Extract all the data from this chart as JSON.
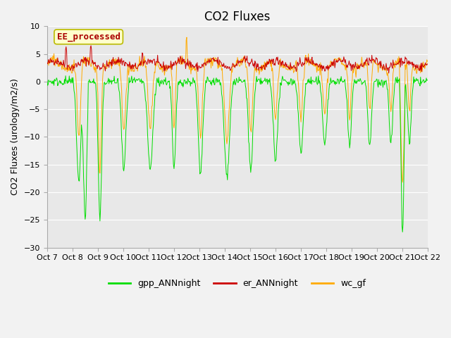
{
  "title": "CO2 Fluxes",
  "ylabel": "CO2 Fluxes (urology/m2/s)",
  "ylim": [
    -30,
    10
  ],
  "yticks": [
    10,
    5,
    0,
    -5,
    -10,
    -15,
    -20,
    -25,
    -30
  ],
  "xtick_labels": [
    "Oct 7",
    "Oct 8",
    "Oct 9",
    "Oct 10",
    "Oct 11",
    "Oct 12",
    "Oct 13",
    "Oct 14",
    "Oct 15",
    "Oct 16",
    "Oct 17",
    "Oct 18",
    "Oct 19",
    "Oct 20",
    "Oct 21",
    "Oct 22"
  ],
  "background_color": "#f2f2f2",
  "plot_bg_color": "#e8e8e8",
  "title_fontsize": 12,
  "axis_label_fontsize": 9,
  "tick_fontsize": 8,
  "legend_labels": [
    "gpp_ANNnight",
    "er_ANNnight",
    "wc_gf"
  ],
  "legend_colors": [
    "#00dd00",
    "#cc0000",
    "#ffaa00"
  ],
  "ee_box_facecolor": "#ffffcc",
  "ee_box_edgecolor": "#bbbb00",
  "ee_text_color": "#aa0000",
  "ee_text": "EE_processed",
  "seed": 42
}
